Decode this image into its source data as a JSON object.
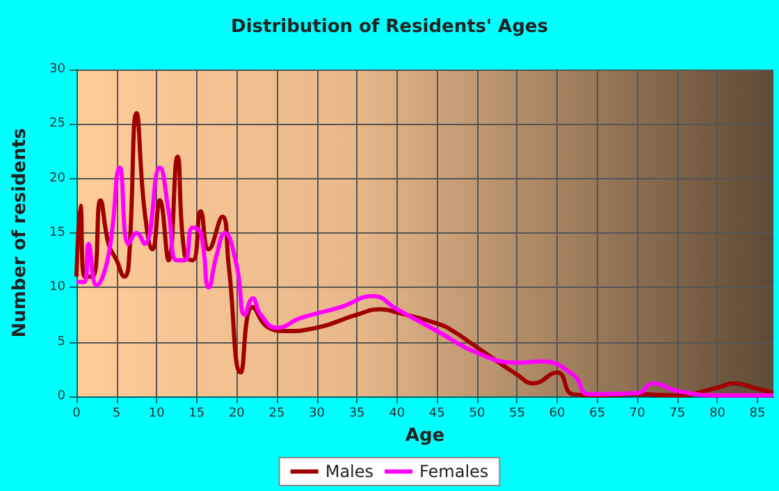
{
  "chart_data": {
    "type": "line",
    "title": "Distribution of Residents' Ages",
    "xlabel": "Age",
    "ylabel": "Number of residents",
    "xlim": [
      0,
      87
    ],
    "xticks": [
      0,
      5,
      10,
      15,
      20,
      25,
      30,
      35,
      40,
      45,
      50,
      55,
      60,
      65,
      70,
      75,
      80,
      85
    ],
    "ylim": [
      0,
      30
    ],
    "yticks": [
      0,
      5,
      10,
      15,
      20,
      25,
      30
    ],
    "grid": true,
    "legend": "bottom",
    "marker": "none",
    "line_style": "solid",
    "series": [
      {
        "name": "Males",
        "color": "#a00000",
        "x": [
          0,
          0.5,
          1,
          2,
          3,
          4,
          5,
          6,
          6.5,
          7.5,
          8.5,
          9.5,
          10.4,
          11.5,
          12.6,
          13.5,
          14.5,
          15.5,
          16.5,
          18.2,
          19,
          20.5,
          22,
          24,
          26,
          30,
          35,
          38,
          40,
          45,
          47,
          50,
          55,
          57,
          60,
          62,
          65,
          70,
          75,
          80,
          82,
          85,
          87
        ],
        "values": [
          11,
          17.5,
          11,
          11,
          18,
          14,
          12.5,
          11,
          12,
          26,
          17,
          13.5,
          18,
          12.5,
          22,
          13,
          12.5,
          17,
          13.5,
          16.5,
          12,
          2.2,
          8.2,
          6.3,
          6,
          6.3,
          7.5,
          8,
          7.7,
          6.7,
          6,
          4.5,
          2,
          1.2,
          2.2,
          0.2,
          0.1,
          0.2,
          0.1,
          0.8,
          1.2,
          0.7,
          0.3
        ]
      },
      {
        "name": "Females",
        "color": "#ff00ff",
        "x": [
          0,
          1,
          1.5,
          2.5,
          4,
          5.4,
          6.5,
          7.5,
          8.5,
          10.4,
          11.5,
          12.5,
          13.5,
          14.5,
          15.5,
          16.5,
          17.5,
          18.5,
          20,
          21,
          22,
          23,
          25,
          28,
          33,
          37,
          40,
          45,
          50,
          55,
          58,
          62,
          64,
          70,
          72,
          75,
          80,
          85,
          87
        ],
        "values": [
          10.5,
          10.5,
          14,
          10.2,
          13,
          21,
          14,
          15,
          14,
          21,
          17,
          12.5,
          12.5,
          15.5,
          15,
          10,
          13,
          15,
          12,
          7.5,
          9,
          7.5,
          6.3,
          7.2,
          8.2,
          9.2,
          8,
          6,
          4,
          3.1,
          3.2,
          2,
          0.2,
          0.3,
          1.2,
          0.5,
          0.1,
          0.1,
          0.1
        ]
      }
    ]
  }
}
